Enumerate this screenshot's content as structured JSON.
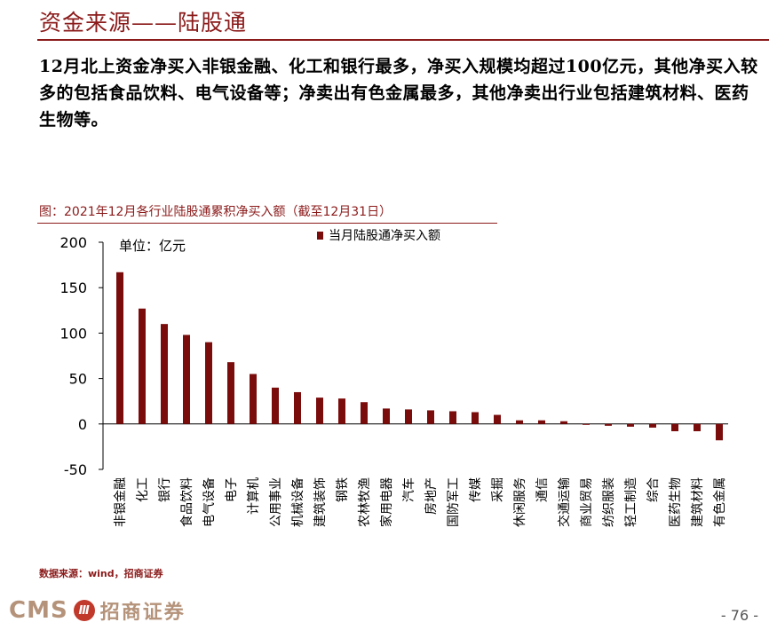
{
  "header": {
    "title": "资金来源——陆股通"
  },
  "summary": "12月北上资金净买入非银金融、化工和银行最多，净买入规模均超过100亿元，其他净买入较多的包括食品饮料、电气设备等；净卖出有色金属最多，其他净卖出行业包括建筑材料、医药生物等。",
  "figure": {
    "caption": "图：2021年12月各行业陆股通累积净买入额（截至12月31日）"
  },
  "chart_data": {
    "type": "bar",
    "title": "图：2021年12月各行业陆股通累积净买入额（截至12月31日）",
    "unit_label": "单位：亿元",
    "legend": [
      "当月陆股通净买入额"
    ],
    "categories": [
      "非银金融",
      "化工",
      "银行",
      "食品饮料",
      "电气设备",
      "电子",
      "计算机",
      "公用事业",
      "机械设备",
      "建筑装饰",
      "钢铁",
      "农林牧渔",
      "家用电器",
      "汽车",
      "房地产",
      "国防军工",
      "传媒",
      "采掘",
      "休闲服务",
      "通信",
      "交通运输",
      "商业贸易",
      "纺织服装",
      "轻工制造",
      "综合",
      "医药生物",
      "建筑材料",
      "有色金属"
    ],
    "series": [
      {
        "name": "当月陆股通净买入额",
        "values": [
          167,
          127,
          110,
          98,
          90,
          68,
          55,
          40,
          35,
          29,
          28,
          24,
          17,
          16,
          15,
          14,
          13,
          10,
          4,
          4,
          3,
          -1,
          -2,
          -3,
          -4,
          -8,
          -8,
          -18
        ]
      }
    ],
    "ylim": [
      -50,
      200
    ],
    "yticks": [
      -50,
      0,
      50,
      100,
      150,
      200
    ],
    "color": "#7b0c0c"
  },
  "footer": {
    "source": "数据来源：wind，招商证券",
    "logo_text": "CMS",
    "logo_badge": "Ⅲ",
    "logo_cn": "招商证券",
    "page": "- 76 -"
  }
}
